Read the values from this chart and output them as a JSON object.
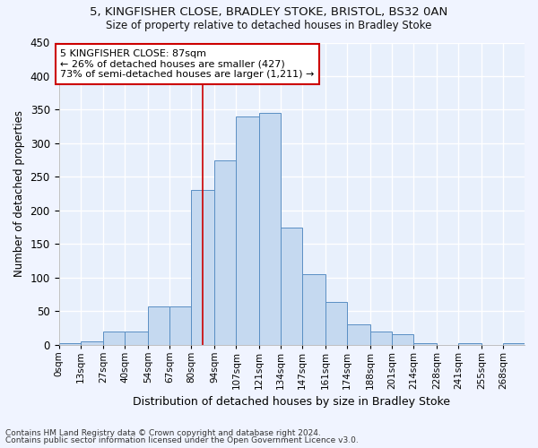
{
  "title1": "5, KINGFISHER CLOSE, BRADLEY STOKE, BRISTOL, BS32 0AN",
  "title2": "Size of property relative to detached houses in Bradley Stoke",
  "xlabel": "Distribution of detached houses by size in Bradley Stoke",
  "ylabel": "Number of detached properties",
  "bin_edges": [
    0,
    13,
    27,
    40,
    54,
    67,
    80,
    94,
    107,
    121,
    134,
    147,
    161,
    174,
    188,
    201,
    214,
    228,
    241,
    255,
    268,
    281
  ],
  "bin_labels": [
    "0sqm",
    "13sqm",
    "27sqm",
    "40sqm",
    "54sqm",
    "67sqm",
    "80sqm",
    "94sqm",
    "107sqm",
    "121sqm",
    "134sqm",
    "147sqm",
    "161sqm",
    "174sqm",
    "188sqm",
    "201sqm",
    "214sqm",
    "228sqm",
    "241sqm",
    "255sqm",
    "268sqm"
  ],
  "bar_heights": [
    2,
    5,
    20,
    20,
    57,
    57,
    230,
    275,
    340,
    345,
    175,
    105,
    63,
    30,
    20,
    15,
    2,
    0,
    2,
    0,
    2
  ],
  "bar_color": "#c5d9f0",
  "bar_edge_color": "#5a8fc4",
  "property_sqm": 87,
  "vline_color": "#cc0000",
  "annotation_text": "5 KINGFISHER CLOSE: 87sqm\n← 26% of detached houses are smaller (427)\n73% of semi-detached houses are larger (1,211) →",
  "annotation_box_color": "#ffffff",
  "annotation_box_edge_color": "#cc0000",
  "ylim": [
    0,
    450
  ],
  "yticks": [
    0,
    50,
    100,
    150,
    200,
    250,
    300,
    350,
    400,
    450
  ],
  "bg_color": "#e8f0fc",
  "grid_color": "#ffffff",
  "fig_color": "#f0f4ff",
  "footnote1": "Contains HM Land Registry data © Crown copyright and database right 2024.",
  "footnote2": "Contains public sector information licensed under the Open Government Licence v3.0."
}
